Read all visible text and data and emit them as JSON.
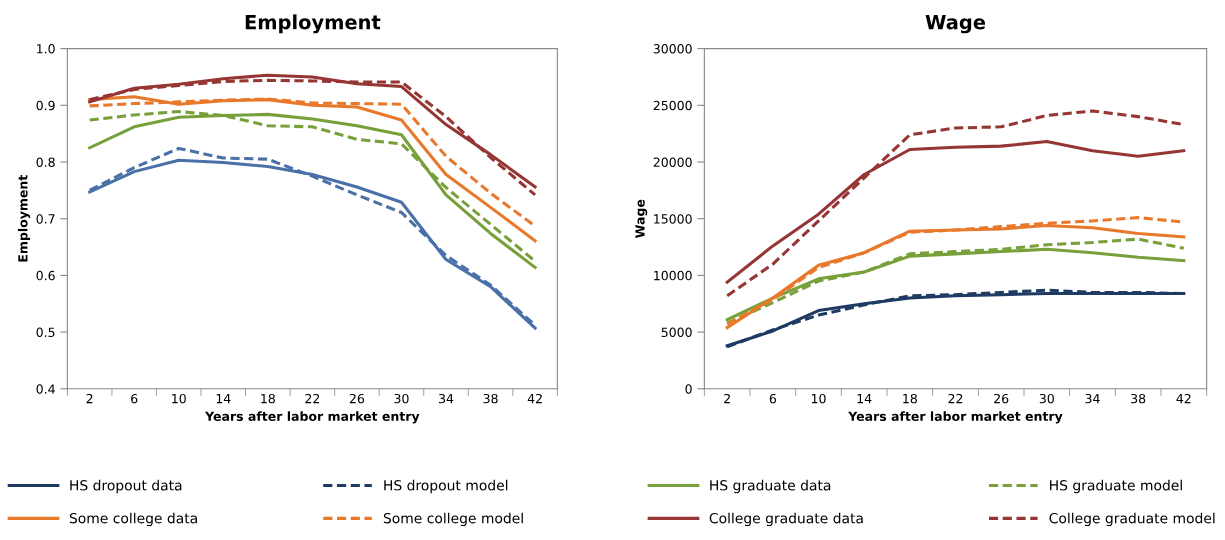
{
  "chart_data": [
    {
      "type": "line",
      "title": "Employment",
      "xlabel": "Years after labor market entry",
      "ylabel": "Employment",
      "categories": [
        "2",
        "6",
        "10",
        "14",
        "18",
        "22",
        "26",
        "30",
        "34",
        "38",
        "42"
      ],
      "ylim": [
        0.4,
        1.0
      ],
      "yticks": [
        {
          "value": 0.4,
          "label": "0.4"
        },
        {
          "value": 0.5,
          "label": "0.5"
        },
        {
          "value": 0.6,
          "label": "0.6"
        },
        {
          "value": 0.7,
          "label": "0.7"
        },
        {
          "value": 0.8,
          "label": "0.8"
        },
        {
          "value": 0.9,
          "label": "0.9"
        },
        {
          "value": 1.0,
          "label": "1.0"
        }
      ],
      "grid": false,
      "legend": false,
      "series": [
        {
          "color": "#4a70a8",
          "line_style": "solid",
          "values": [
            0.747,
            0.783,
            0.803,
            0.799,
            0.792,
            0.778,
            0.756,
            0.729,
            0.628,
            0.58,
            0.507
          ]
        },
        {
          "color": "#4a70a8",
          "line_style": "dashed",
          "values": [
            0.75,
            0.79,
            0.824,
            0.807,
            0.805,
            0.775,
            0.742,
            0.711,
            0.635,
            0.583,
            0.512
          ]
        },
        {
          "color": "#77a03b",
          "line_style": "solid",
          "values": [
            0.825,
            0.862,
            0.879,
            0.882,
            0.884,
            0.876,
            0.864,
            0.848,
            0.742,
            0.674,
            0.614
          ]
        },
        {
          "color": "#77a03b",
          "line_style": "dashed",
          "values": [
            0.874,
            0.883,
            0.889,
            0.882,
            0.864,
            0.862,
            0.84,
            0.832,
            0.755,
            0.69,
            0.625
          ]
        },
        {
          "color": "#e8782a",
          "line_style": "solid",
          "values": [
            0.91,
            0.915,
            0.902,
            0.908,
            0.91,
            0.9,
            0.897,
            0.874,
            0.778,
            0.72,
            0.661
          ]
        },
        {
          "color": "#e8782a",
          "line_style": "dashed",
          "values": [
            0.899,
            0.903,
            0.906,
            0.909,
            0.911,
            0.904,
            0.903,
            0.902,
            0.81,
            0.745,
            0.687
          ]
        },
        {
          "color": "#963634",
          "line_style": "solid",
          "values": [
            0.906,
            0.93,
            0.937,
            0.947,
            0.953,
            0.95,
            0.938,
            0.933,
            0.866,
            0.813,
            0.756
          ]
        },
        {
          "color": "#963634",
          "line_style": "dashed",
          "values": [
            0.91,
            0.928,
            0.935,
            0.942,
            0.944,
            0.943,
            0.941,
            0.941,
            0.88,
            0.808,
            0.742
          ]
        }
      ]
    },
    {
      "type": "line",
      "title": "Wage",
      "xlabel": "Years after labor market entry",
      "ylabel": "Wage",
      "categories": [
        "2",
        "6",
        "10",
        "14",
        "18",
        "22",
        "26",
        "30",
        "34",
        "38",
        "42"
      ],
      "ylim": [
        0,
        30000
      ],
      "yticks": [
        0,
        5000,
        10000,
        15000,
        20000,
        25000,
        30000
      ],
      "grid": false,
      "legend": "bottom",
      "series": [
        {
          "name": "HS dropout data",
          "color": "#1f3a63",
          "line_style": "solid",
          "values": [
            3800,
            5100,
            6900,
            7500,
            8000,
            8200,
            8300,
            8400,
            8400,
            8400,
            8400
          ]
        },
        {
          "name": "HS dropout model",
          "color": "#1f3a63",
          "line_style": "dashed",
          "values": [
            3700,
            5200,
            6500,
            7400,
            8200,
            8300,
            8500,
            8700,
            8500,
            8500,
            8400
          ]
        },
        {
          "name": "HS graduate data",
          "color": "#77a03b",
          "line_style": "solid",
          "values": [
            6100,
            8000,
            9700,
            10300,
            11700,
            11900,
            12100,
            12300,
            12000,
            11600,
            11300
          ]
        },
        {
          "name": "HS graduate model",
          "color": "#77a03b",
          "line_style": "dashed",
          "values": [
            5800,
            7600,
            9500,
            10300,
            11900,
            12100,
            12300,
            12700,
            12900,
            13200,
            12400
          ]
        },
        {
          "name": "Some college data",
          "color": "#e8782a",
          "line_style": "solid",
          "values": [
            5400,
            8000,
            10900,
            12000,
            13900,
            14000,
            14100,
            14400,
            14200,
            13700,
            13400
          ]
        },
        {
          "name": "Some college model",
          "color": "#e8782a",
          "line_style": "dashed",
          "values": [
            5700,
            7900,
            10700,
            12000,
            13800,
            14000,
            14300,
            14600,
            14800,
            15100,
            14700
          ]
        },
        {
          "name": "College graduate data",
          "color": "#963634",
          "line_style": "solid",
          "values": [
            9400,
            12600,
            15400,
            18900,
            21100,
            21300,
            21400,
            21800,
            21000,
            20500,
            21000
          ]
        },
        {
          "name": "College graduate model",
          "color": "#963634",
          "line_style": "dashed",
          "values": [
            8200,
            11000,
            14800,
            18600,
            22400,
            23000,
            23100,
            24100,
            24500,
            24000,
            23300
          ]
        }
      ]
    }
  ]
}
